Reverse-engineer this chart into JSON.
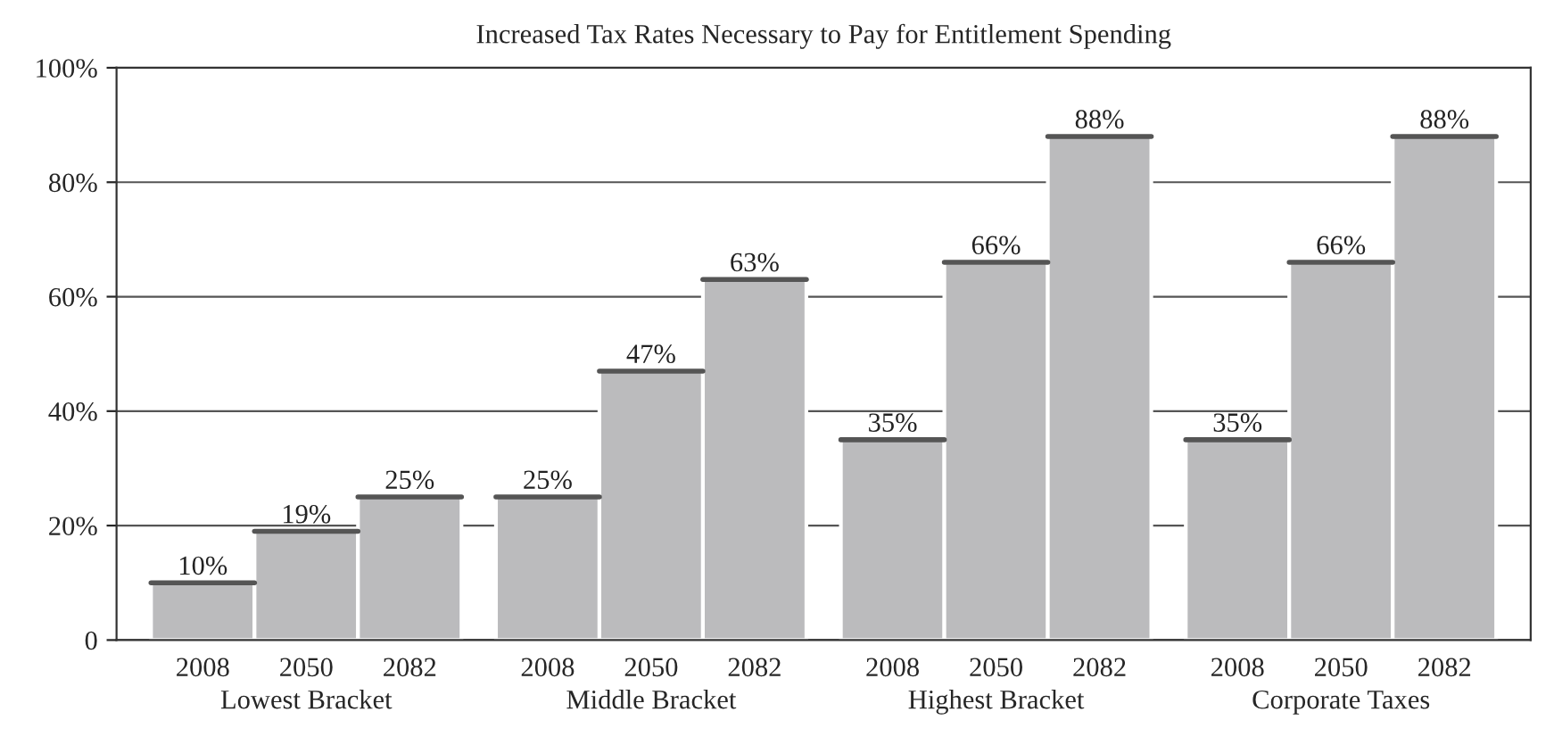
{
  "chart_data": {
    "type": "bar",
    "title": "Increased Tax Rates Necessary to Pay for Entitlement Spending",
    "categories": [
      "Lowest Bracket",
      "Middle Bracket",
      "Highest Bracket",
      "Corporate Taxes"
    ],
    "series": [
      {
        "name": "2008",
        "color": "#bbbbbd",
        "values": [
          10,
          25,
          35,
          35
        ],
        "value_labels": [
          "10%",
          "25%",
          "35%",
          "35%"
        ]
      },
      {
        "name": "2050",
        "color": "#bbbbbd",
        "values": [
          19,
          47,
          66,
          66
        ],
        "value_labels": [
          "19%",
          "47%",
          "66%",
          "66%"
        ]
      },
      {
        "name": "2082",
        "color": "#bbbbbd",
        "values": [
          25,
          63,
          88,
          88
        ],
        "value_labels": [
          "25%",
          "63%",
          "88%",
          "88%"
        ]
      }
    ],
    "ylim": [
      0,
      100
    ],
    "yticks": [
      0,
      {
        "value": 20,
        "label": "20%"
      },
      {
        "value": 40,
        "label": "40%"
      },
      {
        "value": 60,
        "label": "60%"
      },
      {
        "value": 80,
        "label": "80%"
      },
      {
        "value": 100,
        "label": "100%"
      }
    ],
    "grid": "y",
    "legend": false
  }
}
